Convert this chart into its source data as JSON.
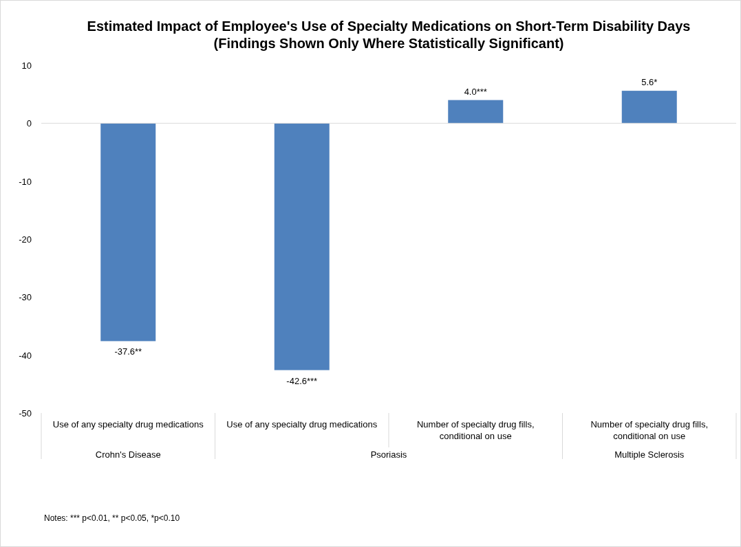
{
  "chart_data": {
    "type": "bar",
    "title": "Estimated Impact of Employee's Use of Specialty Medications on Short-Term Disability Days",
    "subtitle": "(Findings Shown Only Where Statistically Significant)",
    "categories": [
      "Use of any specialty drug medications",
      "Use of any specialty drug medications",
      "Number of specialty drug fills, conditional on use",
      "Number of specialty drug fills, conditional on use"
    ],
    "values": [
      -37.6,
      -42.6,
      4.0,
      5.6
    ],
    "value_labels": [
      "-37.6**",
      "-42.6***",
      "4.0***",
      "5.6*"
    ],
    "color": "#4f81bd",
    "ylim": [
      -50,
      10
    ],
    "yticks": [
      -50,
      -40,
      -30,
      -20,
      -10,
      0,
      10
    ],
    "annotations": [
      "Crohn's Disease",
      "Psoriasis",
      "Multiple Sclerosis",
      "Notes: *** p<0.01, ** p<0.05, *p<0.10"
    ]
  }
}
